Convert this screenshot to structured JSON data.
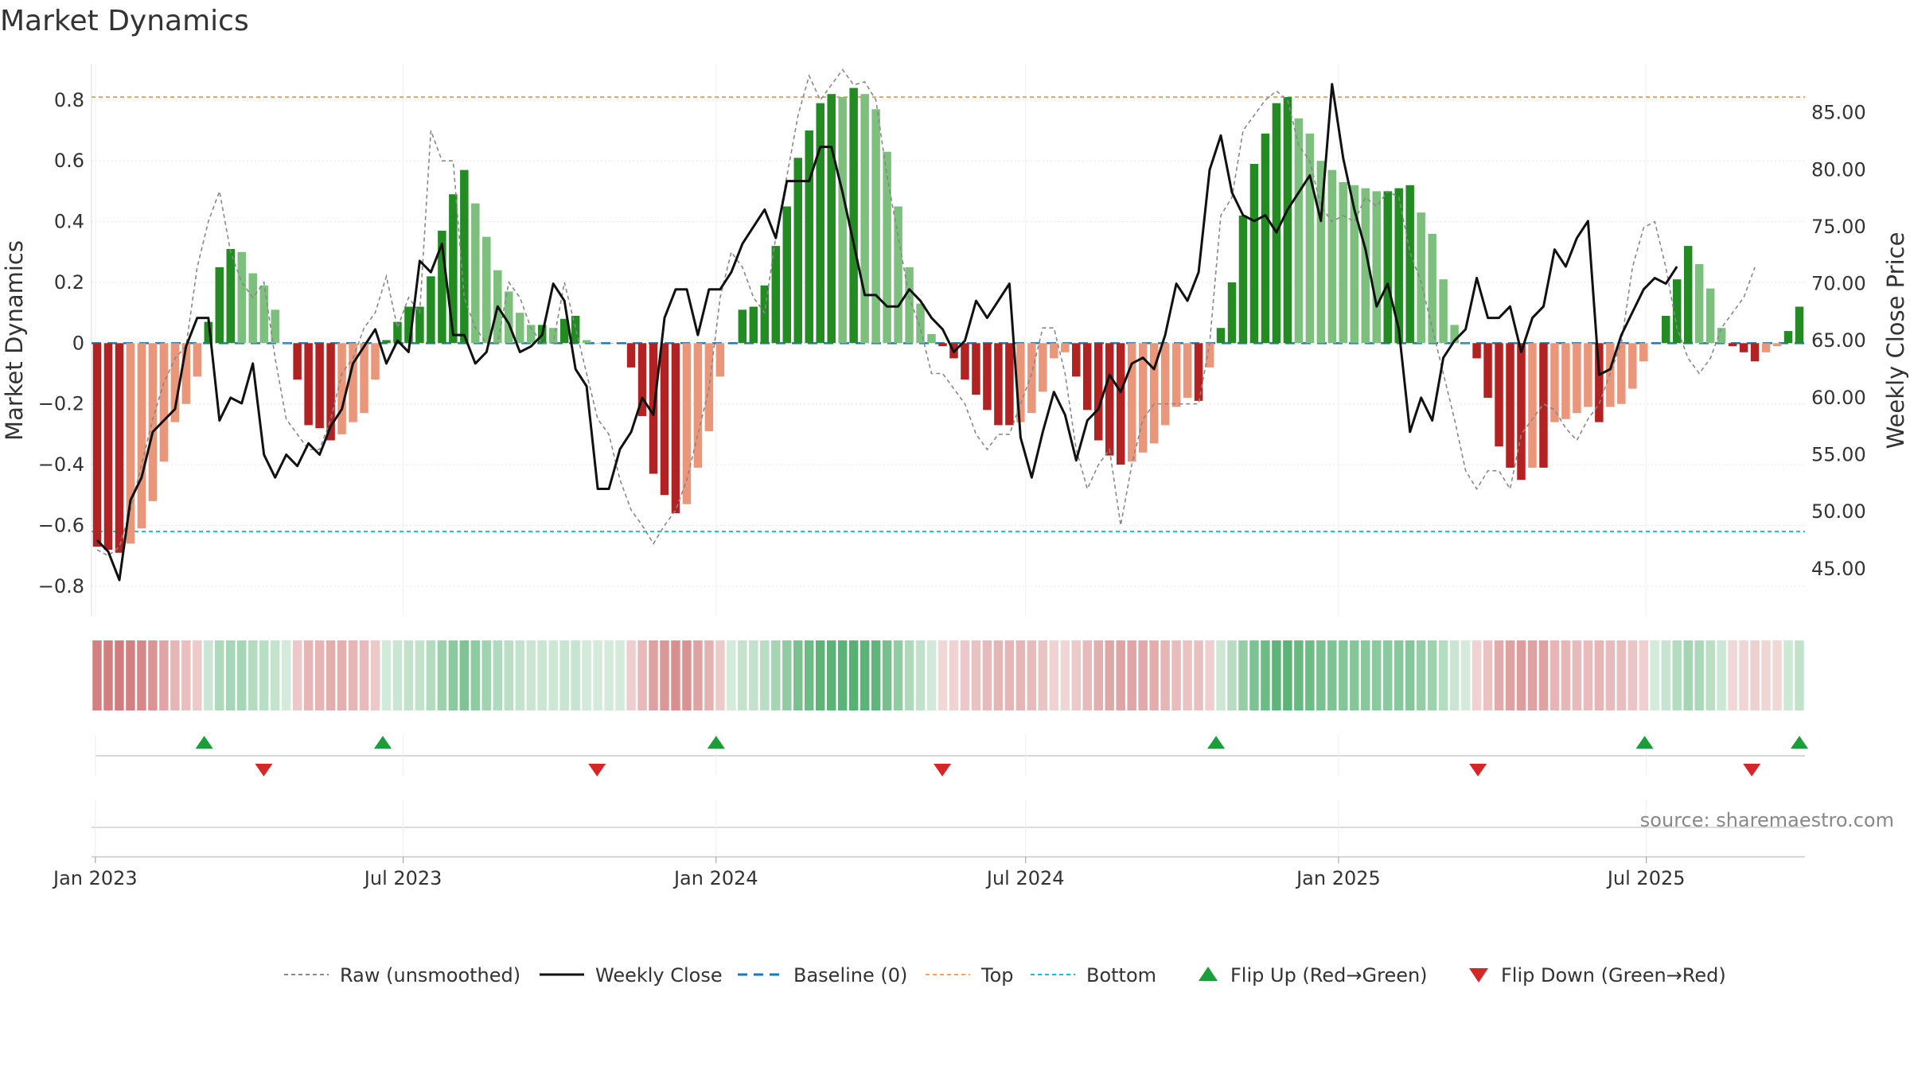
{
  "chart_data": {
    "type": "bar",
    "title": "Market Dynamics",
    "ylabel_left": "Market Dynamics",
    "ylabel_right": "Weekly Close Price",
    "ylim_left": [
      -0.9,
      0.92
    ],
    "ylim_right": [
      40.8,
      89.3
    ],
    "yticks_left": [
      "0.8",
      "0.6",
      "0.4",
      "0.2",
      "0",
      "−0.2",
      "−0.4",
      "−0.6",
      "−0.8"
    ],
    "yticks_left_values": [
      0.8,
      0.6,
      0.4,
      0.2,
      0,
      -0.2,
      -0.4,
      -0.6,
      -0.8
    ],
    "yticks_right": [
      "85.00",
      "80.00",
      "75.00",
      "70.00",
      "65.00",
      "60.00",
      "55.00",
      "50.00",
      "45.00"
    ],
    "yticks_right_values": [
      85,
      80,
      75,
      70,
      65,
      60,
      55,
      50,
      45
    ],
    "x_start": "2023-01-02",
    "x_end": "2025-09-29",
    "xticks": [
      {
        "label": "Jan 2023",
        "date": "2023-01-01"
      },
      {
        "label": "Jul 2023",
        "date": "2023-07-01"
      },
      {
        "label": "Jan 2024",
        "date": "2024-01-01"
      },
      {
        "label": "Jul 2024",
        "date": "2024-07-01"
      },
      {
        "label": "Jan 2025",
        "date": "2025-01-01"
      },
      {
        "label": "Jul 2025",
        "date": "2025-07-01"
      }
    ],
    "top_level": 0.81,
    "bottom_level": -0.62,
    "baseline": 0,
    "grid": true,
    "momentum": [
      -0.67,
      -0.68,
      -0.69,
      -0.66,
      -0.61,
      -0.52,
      -0.39,
      -0.26,
      -0.2,
      -0.11,
      0.07,
      0.25,
      0.31,
      0.3,
      0.23,
      0.19,
      0.11,
      0,
      -0.12,
      -0.27,
      -0.28,
      -0.32,
      -0.3,
      -0.26,
      -0.23,
      -0.12,
      0.01,
      0.07,
      0.12,
      0.12,
      0.22,
      0.37,
      0.49,
      0.57,
      0.46,
      0.35,
      0.24,
      0.17,
      0.1,
      0.06,
      0.06,
      0.05,
      0.08,
      0.09,
      0.01,
      0,
      0,
      0,
      -0.08,
      -0.24,
      -0.43,
      -0.5,
      -0.56,
      -0.53,
      -0.41,
      -0.29,
      -0.11,
      0,
      0.11,
      0.12,
      0.19,
      0.32,
      0.45,
      0.61,
      0.7,
      0.79,
      0.82,
      0.81,
      0.84,
      0.82,
      0.77,
      0.63,
      0.45,
      0.25,
      0.13,
      0.03,
      -0.01,
      -0.05,
      -0.12,
      -0.17,
      -0.22,
      -0.27,
      -0.27,
      -0.26,
      -0.23,
      -0.16,
      -0.05,
      -0.03,
      -0.11,
      -0.22,
      -0.32,
      -0.37,
      -0.4,
      -0.39,
      -0.36,
      -0.33,
      -0.27,
      -0.21,
      -0.18,
      -0.19,
      -0.08,
      0.05,
      0.2,
      0.42,
      0.59,
      0.69,
      0.79,
      0.81,
      0.74,
      0.69,
      0.6,
      0.57,
      0.53,
      0.52,
      0.51,
      0.5,
      0.5,
      0.51,
      0.52,
      0.43,
      0.36,
      0.21,
      0.06,
      0,
      -0.05,
      -0.18,
      -0.34,
      -0.41,
      -0.45,
      -0.41,
      -0.41,
      -0.26,
      -0.25,
      -0.23,
      -0.21,
      -0.26,
      -0.21,
      -0.2,
      -0.15,
      -0.06,
      0,
      0.09,
      0.21,
      0.32,
      0.26,
      0.18,
      0.05,
      -0.01,
      -0.03,
      -0.06,
      -0.03,
      -0.01,
      0.04,
      0.12
    ],
    "raw": [
      -0.68,
      -0.7,
      -0.67,
      -0.55,
      -0.4,
      -0.25,
      -0.13,
      -0.05,
      -0.01,
      0.25,
      0.4,
      0.5,
      0.3,
      0.2,
      0.15,
      0.2,
      -0.05,
      -0.25,
      -0.3,
      -0.35,
      -0.35,
      -0.25,
      -0.1,
      -0.05,
      0.05,
      0.1,
      0.22,
      0.05,
      0.15,
      0.1,
      0.7,
      0.6,
      0.6,
      0.15,
      0.05,
      0,
      0,
      0.2,
      0.15,
      0.05,
      0,
      0,
      0.2,
      0.05,
      -0.1,
      -0.25,
      -0.3,
      -0.45,
      -0.55,
      -0.6,
      -0.66,
      -0.6,
      -0.55,
      -0.45,
      -0.3,
      -0.15,
      0.15,
      0.3,
      0.25,
      0.15,
      0.1,
      0.35,
      0.55,
      0.75,
      0.88,
      0.8,
      0.85,
      0.9,
      0.85,
      0.86,
      0.8,
      0.55,
      0.35,
      0.15,
      0.05,
      -0.1,
      -0.1,
      -0.15,
      -0.2,
      -0.3,
      -0.35,
      -0.3,
      -0.3,
      -0.2,
      -0.1,
      0.05,
      0.05,
      -0.1,
      -0.35,
      -0.48,
      -0.4,
      -0.35,
      -0.6,
      -0.4,
      -0.25,
      -0.2,
      -0.2,
      -0.2,
      -0.2,
      -0.2,
      0,
      0.42,
      0.48,
      0.7,
      0.75,
      0.8,
      0.83,
      0.8,
      0.65,
      0.6,
      0.45,
      0.4,
      0.42,
      0.4,
      0.48,
      0.45,
      0.5,
      0.48,
      0.3,
      0.2,
      0.05,
      -0.1,
      -0.25,
      -0.42,
      -0.48,
      -0.42,
      -0.42,
      -0.48,
      -0.3,
      -0.25,
      -0.2,
      -0.22,
      -0.28,
      -0.32,
      -0.25,
      -0.2,
      -0.1,
      0,
      0.25,
      0.38,
      0.4,
      0.25,
      0.05,
      -0.05,
      -0.1,
      -0.05,
      0.05,
      0.1,
      0.15,
      0.25
    ],
    "price": [
      47.5,
      46.5,
      44,
      51,
      53,
      57,
      58,
      59,
      64.5,
      67,
      67,
      58,
      60,
      59.5,
      63,
      55,
      53,
      55,
      54,
      56,
      55,
      57.5,
      59,
      63,
      64.5,
      66,
      63,
      65,
      64,
      72,
      71,
      73.5,
      65.5,
      65.5,
      63,
      64,
      68,
      66.5,
      64,
      64.5,
      65.5,
      70,
      68.5,
      62.5,
      61,
      52,
      52,
      55.5,
      57,
      60,
      58.5,
      67,
      69.5,
      69.5,
      65.5,
      69.5,
      69.5,
      71,
      73.5,
      75,
      76.5,
      74,
      79,
      79,
      79,
      82,
      82,
      78,
      73.5,
      69,
      69,
      68,
      68,
      69.5,
      68.5,
      67,
      66,
      64,
      65,
      68.5,
      67,
      68.5,
      70,
      56.5,
      53,
      57,
      60.5,
      58.5,
      54.5,
      58,
      59,
      62,
      60.5,
      63,
      63.5,
      62.5,
      65.5,
      70,
      68.5,
      71,
      80,
      83,
      78,
      76,
      75.5,
      76,
      74.5,
      76.5,
      78,
      79.5,
      75.5,
      87.5,
      81,
      76.5,
      73,
      68,
      70,
      66,
      57,
      60,
      58,
      63.5,
      65,
      66,
      70.5,
      67,
      67,
      68,
      64,
      67,
      68,
      73,
      71.5,
      74,
      75.5,
      62,
      62.5,
      65.5,
      67.5,
      69.5,
      70.5,
      70,
      71.5
    ],
    "flips_up_dates": [
      "2023-03-06",
      "2023-06-19",
      "2024-01-01",
      "2024-10-21",
      "2025-06-30",
      "2025-09-29"
    ],
    "flips_down_dates": [
      "2023-04-10",
      "2023-10-23",
      "2024-05-13",
      "2025-03-24",
      "2025-09-01"
    ],
    "colors": {
      "green_strong": "#228b22",
      "green_light": "#7dbf7d",
      "red_strong": "#b22222",
      "red_light": "#e9967a",
      "price_line": "#111111",
      "raw_line": "#888888",
      "baseline": "#1f77b4",
      "top": "#f4a460",
      "bottom": "#17becf",
      "flip_up": "#1a9e3a",
      "flip_down": "#d62728"
    },
    "legend": {
      "placement": "bottom-center",
      "entries": [
        "Raw (unsmoothed)",
        "Weekly Close",
        "Baseline (0)",
        "Top",
        "Bottom",
        "Flip Up (Red→Green)",
        "Flip Down (Green→Red)"
      ]
    },
    "source": "source: sharemaestro.com"
  }
}
